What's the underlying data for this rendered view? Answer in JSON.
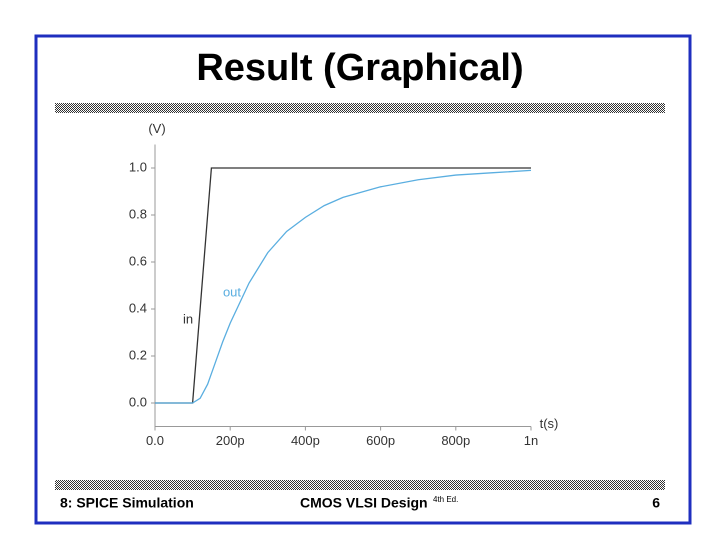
{
  "slide": {
    "title": "Result (Graphical)",
    "footer_left": "8: SPICE Simulation",
    "footer_center": "CMOS VLSI Design",
    "footer_edition": "4th Ed.",
    "page_number": "6"
  },
  "chart_data": {
    "type": "line",
    "y_label": "(V)",
    "x_label": "t(s)",
    "xlim": [
      0,
      1e-09
    ],
    "ylim": [
      -0.1,
      1.1
    ],
    "xticks": [
      {
        "value": 0,
        "label": "0.0"
      },
      {
        "value": 2e-10,
        "label": "200p"
      },
      {
        "value": 4e-10,
        "label": "400p"
      },
      {
        "value": 6e-10,
        "label": "600p"
      },
      {
        "value": 8e-10,
        "label": "800p"
      },
      {
        "value": 1e-09,
        "label": "1n"
      }
    ],
    "yticks": [
      {
        "value": 0,
        "label": "0.0"
      },
      0.2,
      0.4,
      0.6,
      0.8,
      {
        "value": 1,
        "label": "1.0"
      }
    ],
    "grid": false,
    "series": [
      {
        "name": "in",
        "color": "#333333",
        "x": [
          0,
          1e-10,
          1.5e-10,
          1e-09
        ],
        "values": [
          0,
          0,
          1,
          1
        ]
      },
      {
        "name": "out",
        "color": "#5aaee0",
        "x": [
          0,
          1e-10,
          1.2e-10,
          1.4e-10,
          1.6e-10,
          1.8e-10,
          2e-10,
          2.5e-10,
          3e-10,
          3.5e-10,
          4e-10,
          4.5e-10,
          5e-10,
          6e-10,
          7e-10,
          8e-10,
          9e-10,
          1e-09
        ],
        "values": [
          0,
          0,
          0.02,
          0.08,
          0.17,
          0.26,
          0.34,
          0.51,
          0.64,
          0.73,
          0.79,
          0.84,
          0.875,
          0.92,
          0.95,
          0.97,
          0.98,
          0.99
        ]
      }
    ]
  }
}
